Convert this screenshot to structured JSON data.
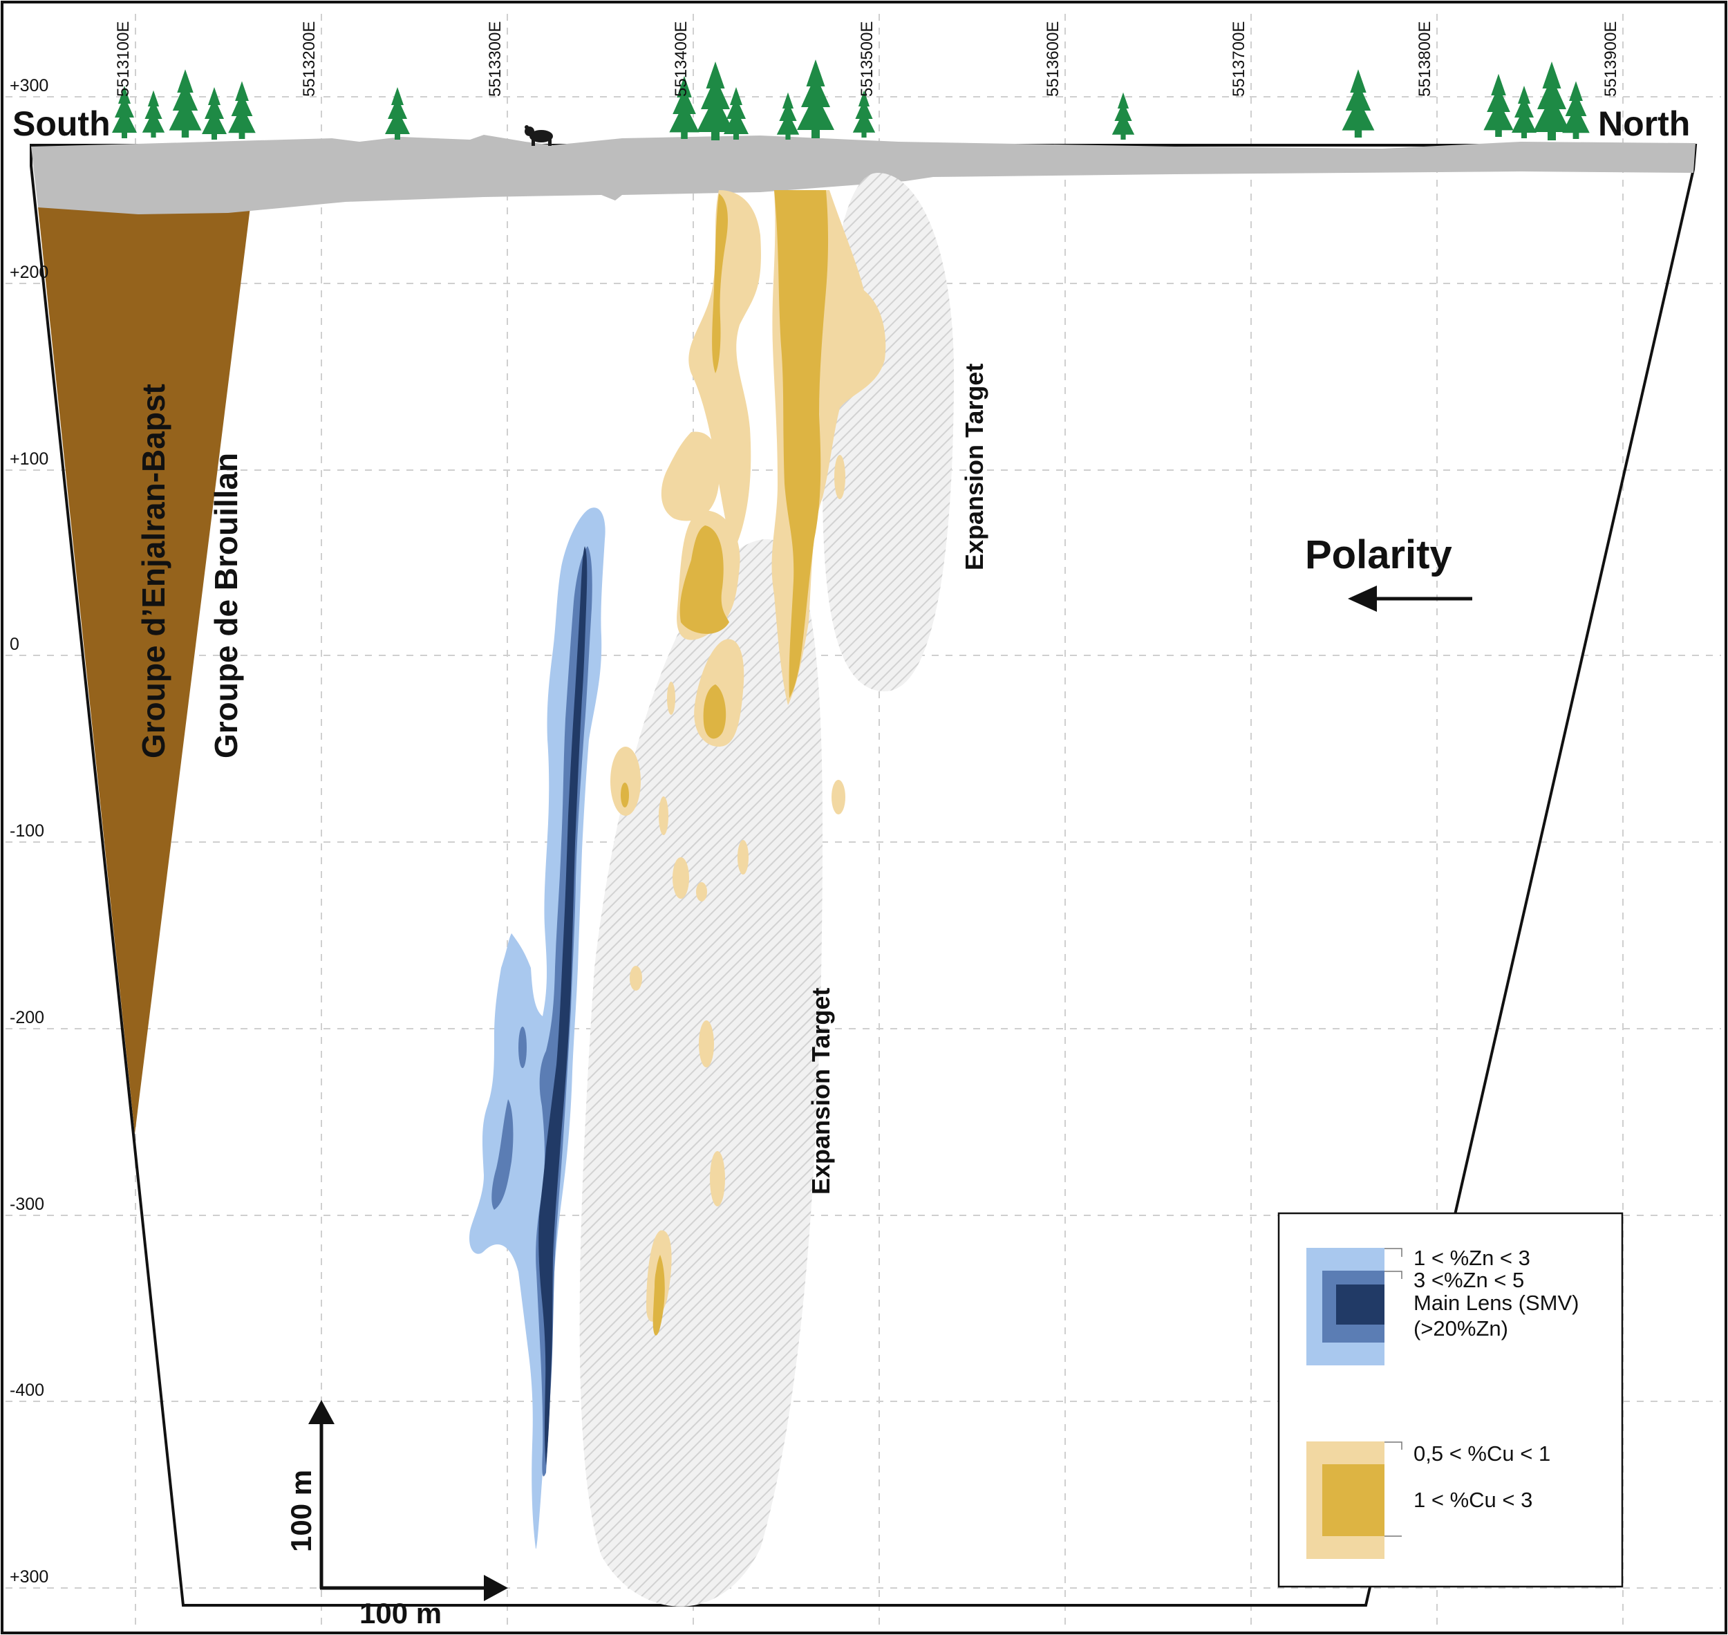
{
  "frame": {
    "left_label": "South",
    "right_label": "North"
  },
  "eastings": [
    "5513100E",
    "5513200E",
    "5513300E",
    "5513400E",
    "5513500E",
    "5513600E",
    "5513700E",
    "5513800E",
    "5513900E"
  ],
  "elevations": [
    "+300",
    "+200",
    "+100",
    "0",
    "-100",
    "-200",
    "-300",
    "-400",
    "+300"
  ],
  "geology": {
    "unit_1": "Groupe d’Enjalran-Bapst",
    "unit_2": "Groupe de Brouillan"
  },
  "targets": {
    "upper": "Expansion Target",
    "lower": "Expansion Target"
  },
  "polarity": {
    "label": "Polarity"
  },
  "scale": {
    "vertical": "100 m",
    "horizontal": "100 m"
  },
  "legend": {
    "zn_low": "1 < %Zn < 3",
    "zn_mid": "3 <%Zn < 5",
    "zn_main_1": "Main Lens (SMV)",
    "zn_main_2": "(>20%Zn)",
    "cu_low": "0,5 < %Cu < 1",
    "cu_high": "1 < %Cu < 3"
  },
  "colors": {
    "zn_low": "#a9c8ee",
    "zn_mid": "#5b7db4",
    "zn_main": "#213a66",
    "cu_low": "#f2d8a2",
    "cu_high": "#ddb443",
    "overburden": "#bdbdbd",
    "rock_unit": "#95631c",
    "tree": "#1e8a45",
    "target_hatch": "#d2d2d2"
  }
}
